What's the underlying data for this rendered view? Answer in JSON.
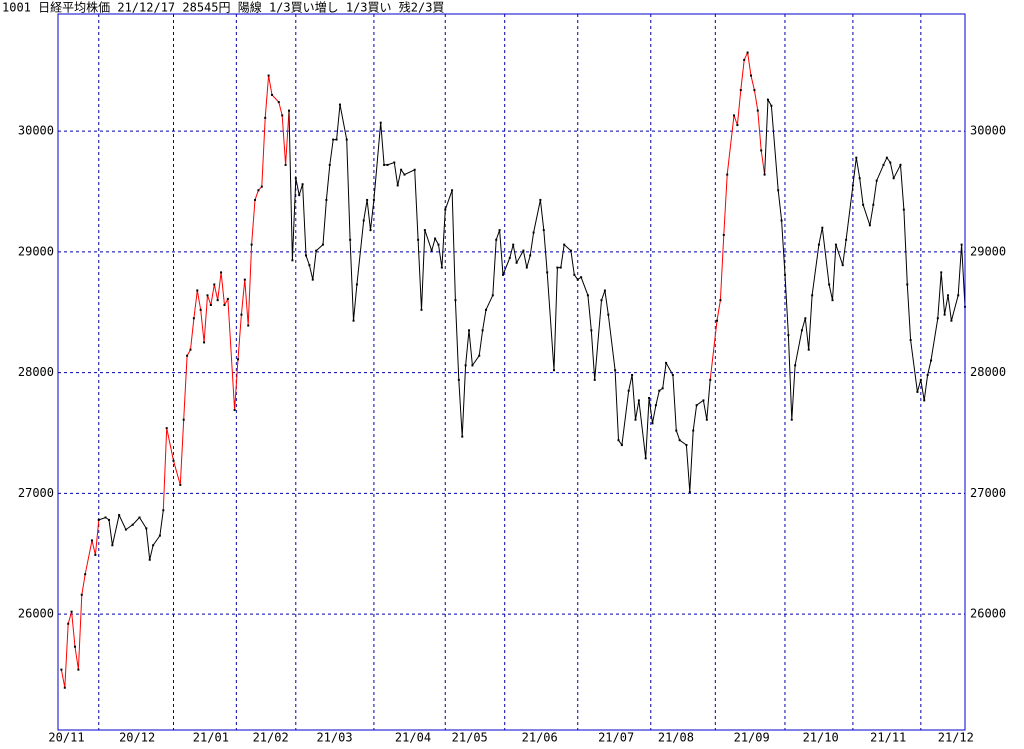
{
  "chart_data": {
    "type": "line",
    "title": "1001 日経平均株価 21/12/17 28545円 陽線 1/3買い増し 1/3買い 残2/3買",
    "xlim": [
      -1,
      266
    ],
    "ylim": [
      25040,
      30970
    ],
    "yticks": [
      26000,
      27000,
      28000,
      29000,
      30000
    ],
    "xgrid": [
      11,
      33,
      51.5,
      69,
      92,
      113,
      130.5,
      152,
      173.5,
      192.5,
      213,
      233,
      253
    ],
    "xticks": [
      {
        "value": 1.5,
        "label": "20/11"
      },
      {
        "value": 22.3,
        "label": "20/12"
      },
      {
        "value": 44,
        "label": "21/01"
      },
      {
        "value": 61.6,
        "label": "21/02"
      },
      {
        "value": 80.4,
        "label": "21/03"
      },
      {
        "value": 103.5,
        "label": "21/04"
      },
      {
        "value": 120.2,
        "label": "21/05"
      },
      {
        "value": 140.8,
        "label": "21/06"
      },
      {
        "value": 163.3,
        "label": "21/07"
      },
      {
        "value": 180.9,
        "label": "21/08"
      },
      {
        "value": 203.2,
        "label": "21/09"
      },
      {
        "value": 223.5,
        "label": "21/10"
      },
      {
        "value": 243.4,
        "label": "21/11"
      },
      {
        "value": 263.3,
        "label": "21/12"
      }
    ],
    "grid": true,
    "frame_color": "#0000cc",
    "grid_color": "#0000aa",
    "color": "#000000",
    "line_colors": [
      {
        "from": 0,
        "to": 11,
        "color": "#ff0000"
      },
      {
        "from": 30,
        "to": 67,
        "color": "#ff0000"
      },
      {
        "from": 191,
        "to": 207,
        "color": "#ff0000"
      }
    ],
    "x": [
      0,
      1,
      2,
      3,
      4,
      5,
      6,
      7,
      9,
      10,
      11,
      13,
      14,
      15,
      17,
      19,
      21,
      23,
      25,
      26,
      27,
      29,
      30,
      31,
      33,
      35,
      36,
      37,
      38,
      39,
      40,
      41,
      42,
      43,
      44,
      45,
      46,
      47,
      48,
      49,
      51,
      52,
      53,
      54,
      55,
      56,
      57,
      58,
      59,
      60,
      61,
      62,
      64,
      65,
      66,
      67,
      68,
      69,
      70,
      71,
      72,
      73,
      74,
      75,
      77,
      78,
      79,
      80,
      81,
      82,
      84,
      85,
      86,
      87,
      89,
      90,
      91,
      92,
      94,
      95,
      96,
      98,
      99,
      100,
      101,
      104,
      105,
      106,
      107,
      109,
      110,
      111,
      112,
      113,
      115,
      116,
      117,
      118,
      119,
      120,
      121,
      123,
      124,
      125,
      127,
      128,
      129,
      130,
      132,
      133,
      134,
      136,
      137,
      138,
      139,
      141,
      142,
      143,
      145,
      146,
      147,
      148,
      150,
      151,
      152,
      153,
      155,
      156,
      157,
      159,
      160,
      161,
      163,
      164,
      165,
      167,
      168,
      169,
      170,
      172,
      173,
      174,
      175,
      176,
      177,
      178,
      180,
      181,
      182,
      184,
      185,
      186,
      187,
      189,
      190,
      191,
      193,
      194,
      195,
      196,
      198,
      199,
      200,
      201,
      202,
      203,
      204,
      205,
      206,
      207,
      208,
      209,
      211,
      212,
      213,
      214,
      215,
      216,
      218,
      219,
      220,
      221,
      223,
      224,
      226,
      227,
      228,
      230,
      231,
      233,
      234,
      235,
      236,
      238,
      239,
      240,
      242,
      243,
      244,
      245,
      247,
      248,
      249,
      250,
      252,
      253,
      254,
      255,
      256,
      258,
      259,
      260,
      261,
      262,
      264,
      265,
      266
    ],
    "values": [
      25540,
      25390,
      25920,
      26020,
      25730,
      25540,
      26160,
      26330,
      26610,
      26490,
      26780,
      26800,
      26780,
      26570,
      26820,
      26700,
      26740,
      26800,
      26710,
      26450,
      26570,
      26650,
      26860,
      27540,
      27270,
      27070,
      27610,
      28140,
      28190,
      28450,
      28680,
      28520,
      28250,
      28640,
      28560,
      28730,
      28600,
      28830,
      28560,
      28610,
      27690,
      28110,
      28480,
      28770,
      28390,
      29060,
      29430,
      29510,
      29540,
      30110,
      30460,
      30300,
      30240,
      30130,
      29720,
      30170,
      28930,
      29610,
      29470,
      29560,
      28970,
      28890,
      28770,
      29010,
      29060,
      29430,
      29720,
      29930,
      29930,
      30220,
      29930,
      29100,
      28430,
      28730,
      29260,
      29430,
      29180,
      29430,
      30070,
      29720,
      29720,
      29740,
      29550,
      29680,
      29640,
      29680,
      29100,
      28520,
      29180,
      29010,
      29110,
      29060,
      28870,
      29350,
      29510,
      28600,
      27940,
      27470,
      28060,
      28350,
      28060,
      28140,
      28350,
      28520,
      28640,
      29100,
      29180,
      28810,
      28950,
      29060,
      28910,
      29010,
      28870,
      28970,
      29160,
      29430,
      29180,
      28830,
      28020,
      28870,
      28870,
      29060,
      29010,
      28810,
      28770,
      28790,
      28640,
      28350,
      27940,
      28600,
      28680,
      28480,
      28020,
      27440,
      27400,
      27850,
      27980,
      27610,
      27770,
      27290,
      27790,
      27580,
      27730,
      27850,
      27870,
      28080,
      27980,
      27520,
      27440,
      27400,
      27010,
      27520,
      27730,
      27770,
      27610,
      27940,
      28430,
      28600,
      29140,
      29640,
      30130,
      30050,
      30340,
      30590,
      30650,
      30460,
      30340,
      30170,
      29840,
      29640,
      30260,
      30210,
      29510,
      29260,
      28810,
      28310,
      27610,
      28060,
      28350,
      28450,
      28190,
      28640,
      29060,
      29200,
      28730,
      28600,
      29060,
      28890,
      29100,
      29550,
      29780,
      29610,
      29390,
      29220,
      29390,
      29590,
      29720,
      29780,
      29740,
      29610,
      29720,
      29350,
      28730,
      28270,
      27840,
      27940,
      27770,
      27980,
      28100,
      28450,
      28830,
      28480,
      28640,
      28430,
      28640,
      29060,
      28545
    ]
  }
}
